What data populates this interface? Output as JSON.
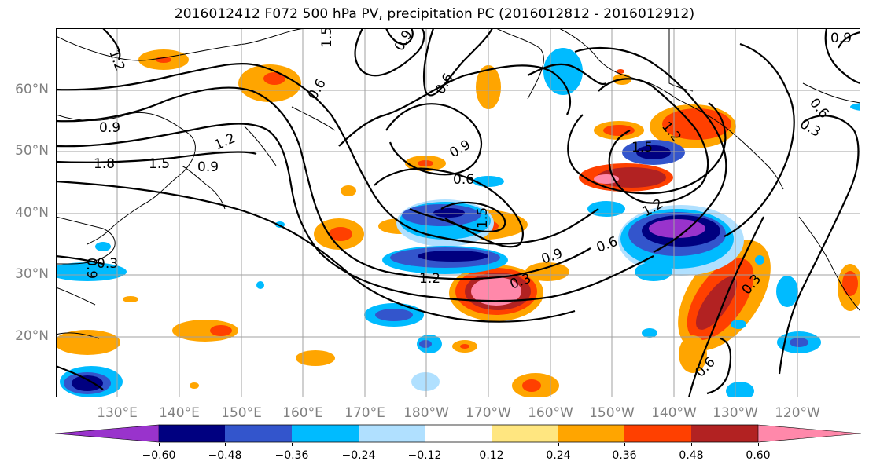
{
  "title": "2016012412 F072 500 hPa PV, precipitation PC (2016012812 - 2016012912)",
  "lat_labels": [
    "60°N",
    "50°N",
    "40°N",
    "30°N",
    "20°N"
  ],
  "lon_labels": [
    "130°E",
    "140°E",
    "150°E",
    "160°E",
    "170°E",
    "180°W",
    "170°W",
    "160°W",
    "150°W",
    "140°W",
    "130°W",
    "120°W"
  ],
  "colorbar": {
    "colors": [
      "#9933cc",
      "#000080",
      "#3355cc",
      "#00bbff",
      "#b0e0ff",
      "#ffffff",
      "#ffe680",
      "#ffa500",
      "#ff4000",
      "#b22222",
      "#ff88aa"
    ],
    "tick_labels": [
      "−0.60",
      "−0.48",
      "−0.36",
      "−0.24",
      "−0.12",
      "0.12",
      "0.24",
      "0.36",
      "0.48",
      "0.60"
    ]
  },
  "contour_labels": [
    "1.2",
    "0.9",
    "1.8",
    "1.5",
    "1.2",
    "0.9",
    "0.9",
    "0.6",
    "0.9",
    "0.6",
    "1.5",
    "0.9",
    "1.2",
    "0.3",
    "0.6",
    "1.2",
    "1.5",
    "1.2",
    "0.6",
    "0.3",
    "0.3",
    "0.6",
    "0.9",
    "0.6",
    "1.5",
    "0.9",
    "0.3"
  ]
}
